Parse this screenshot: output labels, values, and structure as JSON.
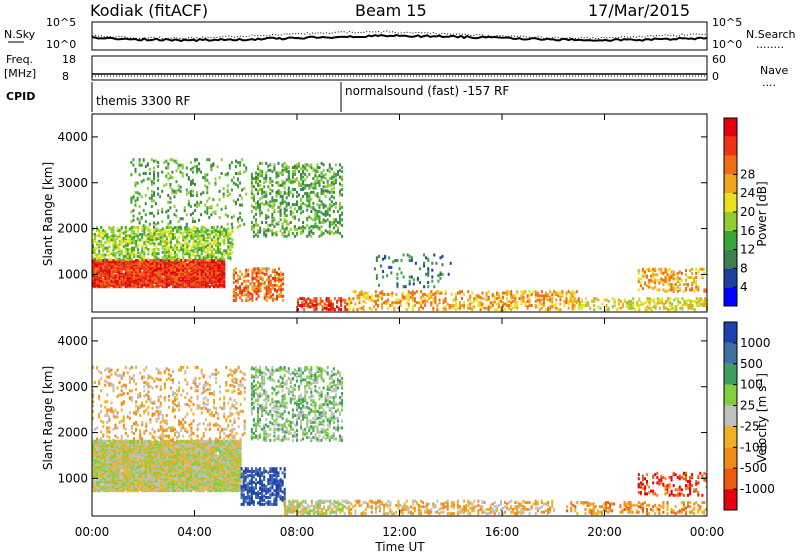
{
  "header": {
    "station": "Kodiak (fitACF)",
    "beam": "Beam 15",
    "date": "17/Mar/2015"
  },
  "params": {
    "nsky_label": "N.Sky",
    "nsearch_label": "N.Search",
    "nsearch_legend": "........",
    "freq_label_1": "Freq.",
    "freq_label_2": "[MHz]",
    "nave_label": "Nave",
    "nave_legend": "....",
    "cpid_label": "CPID",
    "noise_left_top": "10^5",
    "noise_left_bottom": "10^0",
    "noise_right_top": "10^5",
    "noise_right_bottom": "10^0",
    "freq_top": "18",
    "freq_bottom": "8",
    "nave_top": "60",
    "nave_bottom": "0",
    "cpid_1": "themis 3300 RF",
    "cpid_2": "normalsound (fast) -157 RF"
  },
  "chart_data": [
    {
      "type": "heatmap",
      "title": "",
      "xlabel": "Time UT",
      "ylabel": "Slant Range [km]",
      "xlim": [
        0,
        24
      ],
      "ylim": [
        180,
        4500
      ],
      "x_ticks": [
        "00:00",
        "04:00",
        "08:00",
        "12:00",
        "16:00",
        "20:00",
        "00:00"
      ],
      "y_ticks": [
        "1000",
        "2000",
        "3000",
        "4000"
      ],
      "colorbar": {
        "label": "Power [dB]",
        "ticks": [
          "4",
          "8",
          "12",
          "16",
          "20",
          "24",
          "28"
        ],
        "colors": [
          "#0000ff",
          "#1f3fa0",
          "#3e7f4e",
          "#37a637",
          "#8fce2c",
          "#e8e21e",
          "#f2a41e",
          "#ef6c17",
          "#ea3413",
          "#e3000f"
        ]
      },
      "scatter_regions": [
        {
          "t0": 0.0,
          "t1": 5.2,
          "r0": 700,
          "r1": 1300,
          "level": 8,
          "density": 0.9
        },
        {
          "t0": 0.0,
          "t1": 5.5,
          "r0": 1300,
          "r1": 2000,
          "level": 4,
          "density": 0.45
        },
        {
          "t0": 1.5,
          "t1": 6.0,
          "r0": 2000,
          "r1": 3500,
          "level": 3,
          "density": 0.12
        },
        {
          "t0": 5.5,
          "t1": 7.5,
          "r0": 400,
          "r1": 1100,
          "level": 7,
          "density": 0.35
        },
        {
          "t0": 6.2,
          "t1": 9.8,
          "r0": 1800,
          "r1": 3400,
          "level": 3,
          "density": 0.25
        },
        {
          "t0": 8.0,
          "t1": 10.0,
          "r0": 200,
          "r1": 450,
          "level": 8,
          "density": 0.45
        },
        {
          "t0": 10.0,
          "t1": 19.0,
          "r0": 200,
          "r1": 600,
          "level": 6,
          "density": 0.3
        },
        {
          "t0": 11.0,
          "t1": 14.0,
          "r0": 700,
          "r1": 1400,
          "level": 2,
          "density": 0.1
        },
        {
          "t0": 19.0,
          "t1": 24.0,
          "r0": 200,
          "r1": 450,
          "level": 5,
          "density": 0.3
        },
        {
          "t0": 21.3,
          "t1": 24.0,
          "r0": 600,
          "r1": 1100,
          "level": 6,
          "density": 0.25
        }
      ]
    },
    {
      "type": "heatmap",
      "title": "",
      "xlabel": "Time UT",
      "ylabel": "Slant Range [km]",
      "xlim": [
        0,
        24
      ],
      "ylim": [
        180,
        4500
      ],
      "x_ticks": [
        "00:00",
        "04:00",
        "08:00",
        "12:00",
        "16:00",
        "20:00",
        "00:00"
      ],
      "y_ticks": [
        "1000",
        "2000",
        "3000",
        "4000"
      ],
      "colorbar": {
        "label": "Velocity [m s^-1]",
        "ticks": [
          "1000",
          "500",
          "100",
          "25",
          "-25",
          "-100",
          "-500",
          "-1000"
        ],
        "colors": [
          "#1f3fb0",
          "#3e6fa0",
          "#3e9f5e",
          "#7fcf3e",
          "#c0c0c0",
          "#f0b020",
          "#f08a18",
          "#ec5a14",
          "#e60010"
        ]
      },
      "scatter_regions": [
        {
          "t0": 0.0,
          "t1": 5.8,
          "r0": 700,
          "r1": 1800,
          "level": 4,
          "density": 0.95
        },
        {
          "t0": 0.0,
          "t1": 6.0,
          "r0": 1800,
          "r1": 3400,
          "level": 5,
          "density": 0.15
        },
        {
          "t0": 5.8,
          "t1": 7.5,
          "r0": 400,
          "r1": 1200,
          "level": 0,
          "density": 0.45
        },
        {
          "t0": 6.2,
          "t1": 9.8,
          "r0": 1800,
          "r1": 3400,
          "level": 3,
          "density": 0.3
        },
        {
          "t0": 7.5,
          "t1": 10.0,
          "r0": 200,
          "r1": 500,
          "level": 4,
          "density": 0.5
        },
        {
          "t0": 10.0,
          "t1": 18.0,
          "r0": 200,
          "r1": 500,
          "level": 5,
          "density": 0.3
        },
        {
          "t0": 18.5,
          "t1": 24.0,
          "r0": 200,
          "r1": 450,
          "level": 6,
          "density": 0.3
        },
        {
          "t0": 21.3,
          "t1": 24.0,
          "r0": 600,
          "r1": 1100,
          "level": 7,
          "density": 0.25
        }
      ]
    }
  ]
}
